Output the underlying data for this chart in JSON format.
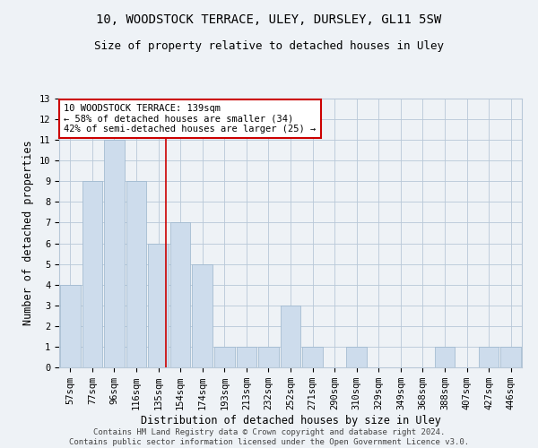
{
  "title1": "10, WOODSTOCK TERRACE, ULEY, DURSLEY, GL11 5SW",
  "title2": "Size of property relative to detached houses in Uley",
  "xlabel": "Distribution of detached houses by size in Uley",
  "ylabel": "Number of detached properties",
  "categories": [
    "57sqm",
    "77sqm",
    "96sqm",
    "116sqm",
    "135sqm",
    "154sqm",
    "174sqm",
    "193sqm",
    "213sqm",
    "232sqm",
    "252sqm",
    "271sqm",
    "290sqm",
    "310sqm",
    "329sqm",
    "349sqm",
    "368sqm",
    "388sqm",
    "407sqm",
    "427sqm",
    "446sqm"
  ],
  "values": [
    4,
    9,
    11,
    9,
    6,
    7,
    5,
    1,
    1,
    1,
    3,
    1,
    0,
    1,
    0,
    0,
    0,
    1,
    0,
    1,
    1
  ],
  "bar_color": "#cddcec",
  "bar_edge_color": "#9ab4cc",
  "red_line_x": 4.35,
  "annotation_text": "10 WOODSTOCK TERRACE: 139sqm\n← 58% of detached houses are smaller (34)\n42% of semi-detached houses are larger (25) →",
  "annotation_box_color": "#ffffff",
  "annotation_box_edge": "#cc0000",
  "ylim": [
    0,
    13
  ],
  "yticks": [
    0,
    1,
    2,
    3,
    4,
    5,
    6,
    7,
    8,
    9,
    10,
    11,
    12,
    13
  ],
  "footer": "Contains HM Land Registry data © Crown copyright and database right 2024.\nContains public sector information licensed under the Open Government Licence v3.0.",
  "bg_color": "#eef2f6",
  "plot_bg_color": "#eef2f6",
  "grid_color": "#b8c8d8",
  "title1_fontsize": 10,
  "title2_fontsize": 9,
  "xlabel_fontsize": 8.5,
  "ylabel_fontsize": 8.5,
  "tick_fontsize": 7.5,
  "footer_fontsize": 6.5,
  "annot_fontsize": 7.5
}
